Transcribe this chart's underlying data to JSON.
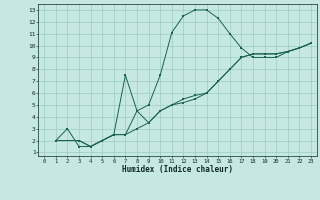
{
  "bg_color": "#c5e8e3",
  "grid_color": "#9eccc5",
  "line_color": "#1a6055",
  "xlabel": "Humidex (Indice chaleur)",
  "xlim_min": -0.5,
  "xlim_max": 23.5,
  "ylim_min": 0.7,
  "ylim_max": 13.5,
  "xticks": [
    0,
    1,
    2,
    3,
    4,
    5,
    6,
    7,
    8,
    9,
    10,
    11,
    12,
    13,
    14,
    15,
    16,
    17,
    18,
    19,
    20,
    21,
    22,
    23
  ],
  "yticks": [
    1,
    2,
    3,
    4,
    5,
    6,
    7,
    8,
    9,
    10,
    11,
    12,
    13
  ],
  "line1_x": [
    1,
    2,
    3,
    4,
    5,
    6,
    7,
    8,
    9,
    10,
    11,
    12,
    13,
    14,
    15,
    16,
    17,
    18,
    19,
    20,
    21,
    22,
    23
  ],
  "line1_y": [
    2,
    3,
    1.5,
    1.5,
    2,
    2.5,
    7.5,
    4.5,
    5.0,
    7.5,
    11.1,
    12.5,
    13.0,
    13.0,
    12.3,
    11.0,
    9.8,
    9.0,
    9.0,
    9.0,
    9.5,
    9.8,
    10.2
  ],
  "line2_x": [
    1,
    3,
    4,
    5,
    6,
    7,
    8,
    9,
    10,
    11,
    12,
    13,
    14,
    15,
    16,
    17,
    18,
    19,
    20,
    21,
    22,
    23
  ],
  "line2_y": [
    2,
    2.0,
    1.5,
    2.0,
    2.5,
    2.5,
    3.0,
    3.5,
    4.5,
    5.0,
    5.2,
    5.5,
    6.0,
    7.0,
    8.0,
    9.0,
    9.3,
    9.3,
    9.3,
    9.5,
    9.8,
    10.2
  ],
  "line3_x": [
    1,
    3,
    4,
    5,
    6,
    7,
    8,
    9,
    10,
    11,
    12,
    13,
    14,
    15,
    16,
    17,
    18,
    19,
    20,
    21,
    22,
    23
  ],
  "line3_y": [
    2,
    2.0,
    1.5,
    2.0,
    2.5,
    2.5,
    4.5,
    3.5,
    4.5,
    5.0,
    5.5,
    5.8,
    6.0,
    7.0,
    8.0,
    9.0,
    9.3,
    9.3,
    9.3,
    9.5,
    9.8,
    10.2
  ]
}
